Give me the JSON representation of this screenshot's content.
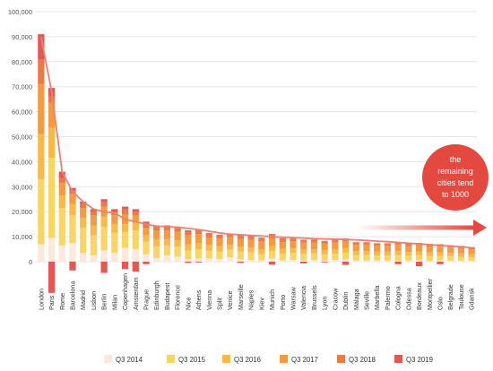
{
  "chart_data": {
    "type": "bar",
    "stacked": true,
    "categories": [
      "London",
      "Paris",
      "Rome",
      "Barcelona",
      "Madrid",
      "Lisbon",
      "Berlin",
      "Milan",
      "Copenhagen",
      "Amsterdam",
      "Prague",
      "Edinburgh",
      "Budapest",
      "Florence",
      "Nice",
      "Athens",
      "Vienna",
      "Split",
      "Venice",
      "Marseille",
      "Naples",
      "Kiev",
      "Munich",
      "Porto",
      "Warsaw",
      "Valencia",
      "Brussels",
      "Lyon",
      "Cracow",
      "Dublin",
      "Málaga",
      "Seville",
      "Marbella",
      "Palermo",
      "Cologna",
      "Odessa",
      "Bordeaux",
      "Montpellier",
      "Oslo",
      "Belgrade",
      "Toulouse",
      "Gdansk"
    ],
    "series": [
      {
        "name": "Q3 2014",
        "color": "#fde9dc",
        "values": [
          7000,
          9500,
          6500,
          7500,
          3500,
          2500,
          4500,
          3500,
          5500,
          5000,
          3000,
          1500,
          2500,
          2000,
          1000,
          1200,
          1200,
          1000,
          1800,
          1000,
          700,
          500,
          1200,
          500,
          700,
          500,
          700,
          500,
          700,
          900,
          400,
          400,
          500,
          400,
          400,
          400,
          600,
          400,
          500,
          400,
          300,
          300
        ]
      },
      {
        "name": "Q3 2015",
        "color": "#f9d467",
        "values": [
          26000,
          32000,
          15000,
          11000,
          10000,
          8000,
          9500,
          8000,
          6500,
          7500,
          5000,
          4500,
          4000,
          4000,
          3500,
          3800,
          3300,
          3000,
          3000,
          3000,
          3000,
          2500,
          3000,
          2800,
          2800,
          2600,
          2600,
          2400,
          2500,
          2700,
          2200,
          2200,
          2000,
          2100,
          2200,
          2000,
          2000,
          1900,
          1800,
          1800,
          1700,
          1500
        ]
      },
      {
        "name": "Q3 2016",
        "color": "#f7b94a",
        "values": [
          18000,
          12000,
          5000,
          4500,
          4000,
          4000,
          4000,
          3500,
          3000,
          3000,
          2500,
          3000,
          2500,
          2500,
          2500,
          2500,
          2200,
          2200,
          2000,
          2000,
          2000,
          2000,
          2100,
          1800,
          1800,
          1800,
          1700,
          1700,
          1700,
          1800,
          1600,
          1600,
          1500,
          1500,
          1600,
          1500,
          1500,
          1400,
          1400,
          1300,
          1300,
          1200
        ]
      },
      {
        "name": "Q3 2017",
        "color": "#f39b43",
        "values": [
          20000,
          10000,
          5000,
          4000,
          4000,
          4000,
          4000,
          3500,
          4000,
          3000,
          3000,
          3500,
          3500,
          3500,
          3500,
          3500,
          3000,
          3000,
          3000,
          3000,
          3000,
          3000,
          3000,
          2800,
          2800,
          2700,
          2700,
          2600,
          2700,
          2700,
          2500,
          2500,
          2400,
          2400,
          2500,
          2400,
          2400,
          2400,
          2300,
          2200,
          2100,
          2000
        ]
      },
      {
        "name": "Q3 2018",
        "color": "#ea7a4a",
        "values": [
          10000,
          2500,
          2000,
          1500,
          1500,
          1500,
          2000,
          1500,
          2000,
          1500,
          1500,
          1500,
          1500,
          1500,
          1500,
          1500,
          1500,
          1300,
          1300,
          1300,
          1300,
          1300,
          1500,
          1200,
          1200,
          1200,
          1200,
          1100,
          1200,
          1200,
          1100,
          1100,
          1000,
          1000,
          1100,
          1000,
          1000,
          1000,
          1000,
          900,
          900,
          800
        ]
      },
      {
        "name": "Q3 2019",
        "color": "#e05a52",
        "values": [
          10000,
          3500,
          2500,
          1000,
          1000,
          1000,
          1000,
          1000,
          1000,
          1000,
          1000,
          500,
          500,
          500,
          500,
          300,
          300,
          300,
          0,
          300,
          300,
          300,
          300,
          300,
          0,
          0,
          0,
          0,
          0,
          0,
          0,
          0,
          0,
          0,
          0,
          0,
          0,
          0,
          0,
          0,
          0,
          0
        ]
      }
    ],
    "negatives": [
      0,
      -12500,
      0,
      -3500,
      0,
      0,
      -4500,
      0,
      -3000,
      -4000,
      -1000,
      0,
      0,
      0,
      -500,
      -300,
      0,
      0,
      0,
      -500,
      0,
      0,
      -1200,
      0,
      0,
      -700,
      0,
      -300,
      0,
      -1300,
      0,
      0,
      0,
      0,
      -1000,
      0,
      -1800,
      0,
      -1000,
      0,
      0,
      0
    ],
    "trend": [
      90000,
      68000,
      36000,
      28000,
      24000,
      21000,
      20000,
      19500,
      17000,
      16000,
      15000,
      14200,
      14000,
      13800,
      13300,
      12800,
      12200,
      11500,
      11000,
      10800,
      10500,
      10300,
      10000,
      9800,
      9600,
      9400,
      9200,
      9100,
      9000,
      8900,
      8700,
      8500,
      8200,
      8000,
      7700,
      7400,
      7100,
      6800,
      6500,
      6200,
      5900,
      5600
    ],
    "trend_color": "#ee8070",
    "ylim": [
      -13000,
      100000
    ],
    "yticks": [
      0,
      10000,
      20000,
      30000,
      40000,
      50000,
      60000,
      70000,
      80000,
      90000,
      100000
    ],
    "ytick_labels": [
      "0",
      "10,000",
      "20,000",
      "30,000",
      "40,000",
      "50,000",
      "60,000",
      "70,000",
      "80,000",
      "90,000",
      "100,000"
    ],
    "grid": true,
    "legend_position": "bottom",
    "annotation": {
      "lines": [
        "the",
        "remaining",
        "cities tend",
        "to 1000"
      ],
      "circle_color": "#e3493e",
      "arrow_color": "#e3493e"
    }
  }
}
